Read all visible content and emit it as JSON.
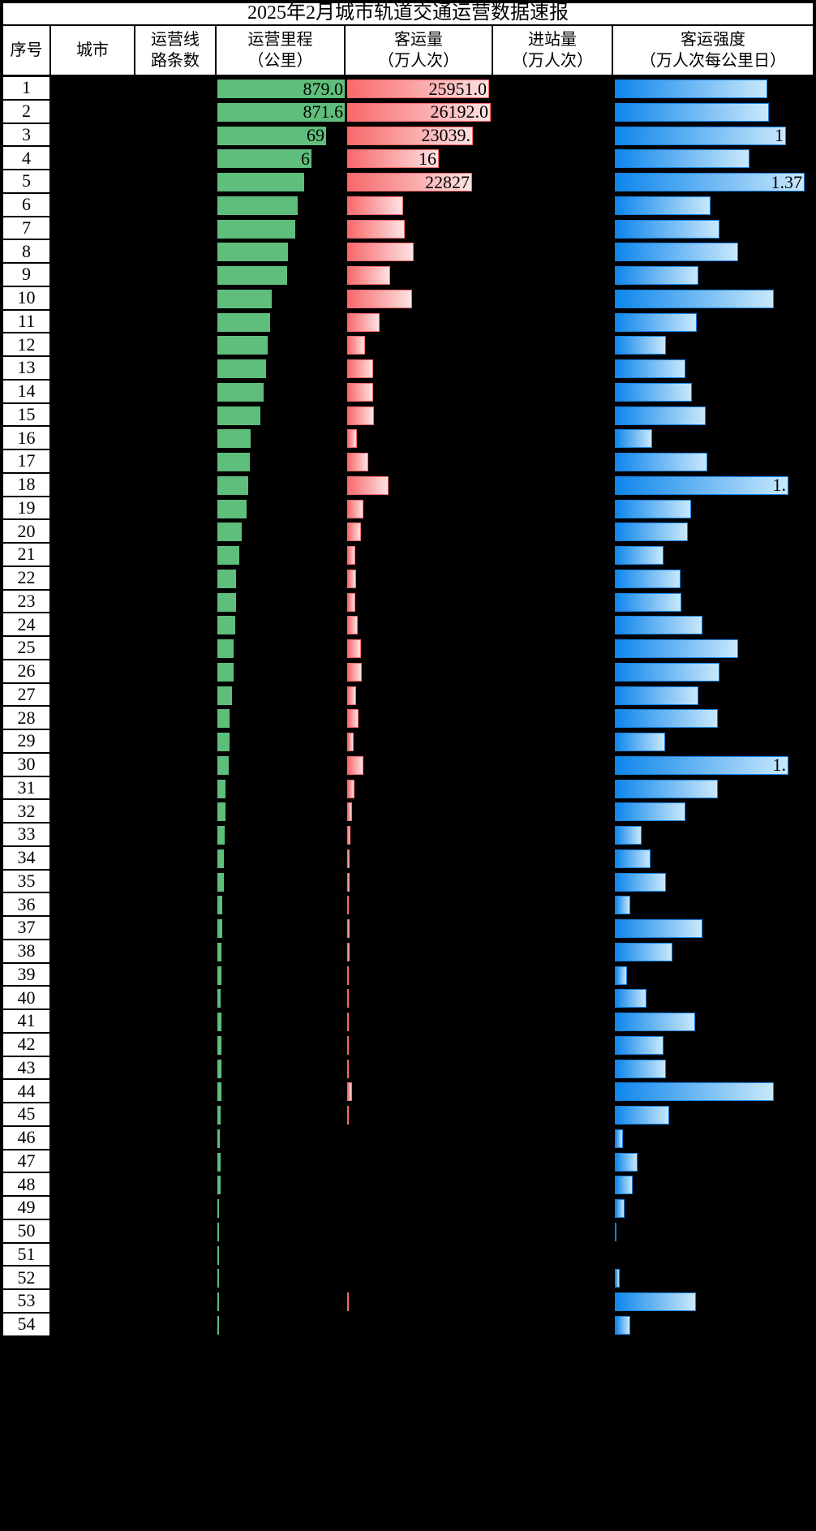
{
  "title": "2025年2月城市轨道交通运营数据速报",
  "colors": {
    "page_background": "#000000",
    "cell_background": "#FFFFFF",
    "grid_border": "#000000",
    "text": "#000000",
    "mileage_bar": "#5FBE7B",
    "volume_bar_start": "#F8696B",
    "volume_bar_end": "#FDE2E3",
    "intensity_bar_start": "#0E86EC",
    "intensity_bar_end": "#C9E8FB"
  },
  "chart_data": {
    "type": "table",
    "title": "2025年2月城市轨道交通运营数据速报",
    "columns": [
      {
        "key": "rank",
        "lines": [
          "序号"
        ],
        "redacted": false
      },
      {
        "key": "city",
        "lines": [
          "城市"
        ],
        "redacted": true
      },
      {
        "key": "line_count",
        "lines": [
          "运营线",
          "路条数"
        ],
        "redacted": true
      },
      {
        "key": "mileage",
        "lines": [
          "运营里程",
          "（公里）"
        ],
        "redacted": false
      },
      {
        "key": "volume",
        "lines": [
          "客运量",
          "（万人次）"
        ],
        "redacted": false
      },
      {
        "key": "entries",
        "lines": [
          "进站量",
          "（万人次）"
        ],
        "redacted": true
      },
      {
        "key": "intensity",
        "lines": [
          "客运强度",
          "（万人次每公里日）"
        ],
        "redacted": false
      }
    ],
    "bar_note": "bar widths are pixels measured from the screenshot; city, line-count and entries columns are blacked out in the image",
    "rows": [
      {
        "rank": 1,
        "mileage_bar": 157,
        "mileage_label": "879.0",
        "volume_bar": 175,
        "volume_label": "25951.0",
        "intensity_bar": 188,
        "intensity_label": ""
      },
      {
        "rank": 2,
        "mileage_bar": 157,
        "mileage_label": "871.6",
        "volume_bar": 177,
        "volume_label": "26192.0",
        "intensity_bar": 190,
        "intensity_label": ""
      },
      {
        "rank": 3,
        "mileage_bar": 134,
        "mileage_label": "69",
        "volume_bar": 155,
        "volume_label": "23039.",
        "intensity_bar": 211,
        "intensity_label": "1"
      },
      {
        "rank": 4,
        "mileage_bar": 116,
        "mileage_label": "6",
        "volume_bar": 113,
        "volume_label": "16",
        "intensity_bar": 166,
        "intensity_label": ""
      },
      {
        "rank": 5,
        "mileage_bar": 107,
        "mileage_label": "",
        "volume_bar": 154,
        "volume_label": "22827",
        "intensity_bar": 234,
        "intensity_label": "1.37"
      },
      {
        "rank": 6,
        "mileage_bar": 99,
        "mileage_label": "",
        "volume_bar": 69,
        "volume_label": "",
        "intensity_bar": 118,
        "intensity_label": ""
      },
      {
        "rank": 7,
        "mileage_bar": 96,
        "mileage_label": "",
        "volume_bar": 71,
        "volume_label": "",
        "intensity_bar": 129,
        "intensity_label": ""
      },
      {
        "rank": 8,
        "mileage_bar": 87,
        "mileage_label": "",
        "volume_bar": 82,
        "volume_label": "",
        "intensity_bar": 152,
        "intensity_label": ""
      },
      {
        "rank": 9,
        "mileage_bar": 86,
        "mileage_label": "",
        "volume_bar": 53,
        "volume_label": "",
        "intensity_bar": 103,
        "intensity_label": ""
      },
      {
        "rank": 10,
        "mileage_bar": 67,
        "mileage_label": "",
        "volume_bar": 80,
        "volume_label": "",
        "intensity_bar": 196,
        "intensity_label": ""
      },
      {
        "rank": 11,
        "mileage_bar": 65,
        "mileage_label": "",
        "volume_bar": 40,
        "volume_label": "",
        "intensity_bar": 101,
        "intensity_label": ""
      },
      {
        "rank": 12,
        "mileage_bar": 62,
        "mileage_label": "",
        "volume_bar": 22,
        "volume_label": "",
        "intensity_bar": 63,
        "intensity_label": ""
      },
      {
        "rank": 13,
        "mileage_bar": 60,
        "mileage_label": "",
        "volume_bar": 32,
        "volume_label": "",
        "intensity_bar": 87,
        "intensity_label": ""
      },
      {
        "rank": 14,
        "mileage_bar": 57,
        "mileage_label": "",
        "volume_bar": 32,
        "volume_label": "",
        "intensity_bar": 95,
        "intensity_label": ""
      },
      {
        "rank": 15,
        "mileage_bar": 53,
        "mileage_label": "",
        "volume_bar": 33,
        "volume_label": "",
        "intensity_bar": 112,
        "intensity_label": ""
      },
      {
        "rank": 16,
        "mileage_bar": 41,
        "mileage_label": "",
        "volume_bar": 12,
        "volume_label": "",
        "intensity_bar": 46,
        "intensity_label": ""
      },
      {
        "rank": 17,
        "mileage_bar": 40,
        "mileage_label": "",
        "volume_bar": 26,
        "volume_label": "",
        "intensity_bar": 114,
        "intensity_label": ""
      },
      {
        "rank": 18,
        "mileage_bar": 38,
        "mileage_label": "",
        "volume_bar": 51,
        "volume_label": "",
        "intensity_bar": 214,
        "intensity_label": "1."
      },
      {
        "rank": 19,
        "mileage_bar": 36,
        "mileage_label": "",
        "volume_bar": 20,
        "volume_label": "",
        "intensity_bar": 94,
        "intensity_label": ""
      },
      {
        "rank": 20,
        "mileage_bar": 30,
        "mileage_label": "",
        "volume_bar": 17,
        "volume_label": "",
        "intensity_bar": 90,
        "intensity_label": ""
      },
      {
        "rank": 21,
        "mileage_bar": 27,
        "mileage_label": "",
        "volume_bar": 10,
        "volume_label": "",
        "intensity_bar": 60,
        "intensity_label": ""
      },
      {
        "rank": 22,
        "mileage_bar": 23,
        "mileage_label": "",
        "volume_bar": 11,
        "volume_label": "",
        "intensity_bar": 81,
        "intensity_label": ""
      },
      {
        "rank": 23,
        "mileage_bar": 23,
        "mileage_label": "",
        "volume_bar": 10,
        "volume_label": "",
        "intensity_bar": 82,
        "intensity_label": ""
      },
      {
        "rank": 24,
        "mileage_bar": 22,
        "mileage_label": "",
        "volume_bar": 13,
        "volume_label": "",
        "intensity_bar": 108,
        "intensity_label": ""
      },
      {
        "rank": 25,
        "mileage_bar": 20,
        "mileage_label": "",
        "volume_bar": 17,
        "volume_label": "",
        "intensity_bar": 152,
        "intensity_label": ""
      },
      {
        "rank": 26,
        "mileage_bar": 20,
        "mileage_label": "",
        "volume_bar": 18,
        "volume_label": "",
        "intensity_bar": 129,
        "intensity_label": ""
      },
      {
        "rank": 27,
        "mileage_bar": 18,
        "mileage_label": "",
        "volume_bar": 11,
        "volume_label": "",
        "intensity_bar": 103,
        "intensity_label": ""
      },
      {
        "rank": 28,
        "mileage_bar": 15,
        "mileage_label": "",
        "volume_bar": 14,
        "volume_label": "",
        "intensity_bar": 127,
        "intensity_label": ""
      },
      {
        "rank": 29,
        "mileage_bar": 15,
        "mileage_label": "",
        "volume_bar": 8,
        "volume_label": "",
        "intensity_bar": 62,
        "intensity_label": ""
      },
      {
        "rank": 30,
        "mileage_bar": 14,
        "mileage_label": "",
        "volume_bar": 20,
        "volume_label": "",
        "intensity_bar": 214,
        "intensity_label": "1."
      },
      {
        "rank": 31,
        "mileage_bar": 10,
        "mileage_label": "",
        "volume_bar": 9,
        "volume_label": "",
        "intensity_bar": 127,
        "intensity_label": ""
      },
      {
        "rank": 32,
        "mileage_bar": 10,
        "mileage_label": "",
        "volume_bar": 6,
        "volume_label": "",
        "intensity_bar": 87,
        "intensity_label": ""
      },
      {
        "rank": 33,
        "mileage_bar": 9,
        "mileage_label": "",
        "volume_bar": 4,
        "volume_label": "",
        "intensity_bar": 33,
        "intensity_label": ""
      },
      {
        "rank": 34,
        "mileage_bar": 8,
        "mileage_label": "",
        "volume_bar": 3,
        "volume_label": "",
        "intensity_bar": 44,
        "intensity_label": ""
      },
      {
        "rank": 35,
        "mileage_bar": 8,
        "mileage_label": "",
        "volume_bar": 3,
        "volume_label": "",
        "intensity_bar": 63,
        "intensity_label": ""
      },
      {
        "rank": 36,
        "mileage_bar": 6,
        "mileage_label": "",
        "volume_bar": 2,
        "volume_label": "",
        "intensity_bar": 19,
        "intensity_label": ""
      },
      {
        "rank": 37,
        "mileage_bar": 6,
        "mileage_label": "",
        "volume_bar": 3,
        "volume_label": "",
        "intensity_bar": 108,
        "intensity_label": ""
      },
      {
        "rank": 38,
        "mileage_bar": 5,
        "mileage_label": "",
        "volume_bar": 3,
        "volume_label": "",
        "intensity_bar": 71,
        "intensity_label": ""
      },
      {
        "rank": 39,
        "mileage_bar": 5,
        "mileage_label": "",
        "volume_bar": 2,
        "volume_label": "",
        "intensity_bar": 15,
        "intensity_label": ""
      },
      {
        "rank": 40,
        "mileage_bar": 4,
        "mileage_label": "",
        "volume_bar": 2,
        "volume_label": "",
        "intensity_bar": 39,
        "intensity_label": ""
      },
      {
        "rank": 41,
        "mileage_bar": 5,
        "mileage_label": "",
        "volume_bar": 2,
        "volume_label": "",
        "intensity_bar": 99,
        "intensity_label": ""
      },
      {
        "rank": 42,
        "mileage_bar": 5,
        "mileage_label": "",
        "volume_bar": 2,
        "volume_label": "",
        "intensity_bar": 60,
        "intensity_label": ""
      },
      {
        "rank": 43,
        "mileage_bar": 5,
        "mileage_label": "",
        "volume_bar": 2,
        "volume_label": "",
        "intensity_bar": 63,
        "intensity_label": ""
      },
      {
        "rank": 44,
        "mileage_bar": 5,
        "mileage_label": "",
        "volume_bar": 6,
        "volume_label": "",
        "intensity_bar": 196,
        "intensity_label": ""
      },
      {
        "rank": 45,
        "mileage_bar": 4,
        "mileage_label": "",
        "volume_bar": 1,
        "volume_label": "",
        "intensity_bar": 67,
        "intensity_label": ""
      },
      {
        "rank": 46,
        "mileage_bar": 3,
        "mileage_label": "",
        "volume_bar": 0,
        "volume_label": "",
        "intensity_bar": 10,
        "intensity_label": ""
      },
      {
        "rank": 47,
        "mileage_bar": 4,
        "mileage_label": "",
        "volume_bar": 0,
        "volume_label": "",
        "intensity_bar": 28,
        "intensity_label": ""
      },
      {
        "rank": 48,
        "mileage_bar": 4,
        "mileage_label": "",
        "volume_bar": 0,
        "volume_label": "",
        "intensity_bar": 22,
        "intensity_label": ""
      },
      {
        "rank": 49,
        "mileage_bar": 2,
        "mileage_label": "",
        "volume_bar": 0,
        "volume_label": "",
        "intensity_bar": 12,
        "intensity_label": ""
      },
      {
        "rank": 50,
        "mileage_bar": 2,
        "mileage_label": "",
        "volume_bar": 0,
        "volume_label": "",
        "intensity_bar": 2,
        "intensity_label": ""
      },
      {
        "rank": 51,
        "mileage_bar": 2,
        "mileage_label": "",
        "volume_bar": 0,
        "volume_label": "",
        "intensity_bar": 0,
        "intensity_label": ""
      },
      {
        "rank": 52,
        "mileage_bar": 2,
        "mileage_label": "",
        "volume_bar": 0,
        "volume_label": "",
        "intensity_bar": 6,
        "intensity_label": ""
      },
      {
        "rank": 53,
        "mileage_bar": 2,
        "mileage_label": "",
        "volume_bar": 2,
        "volume_label": "",
        "intensity_bar": 100,
        "intensity_label": ""
      },
      {
        "rank": 54,
        "mileage_bar": 2,
        "mileage_label": "",
        "volume_bar": 0,
        "volume_label": "",
        "intensity_bar": 19,
        "intensity_label": ""
      }
    ]
  }
}
